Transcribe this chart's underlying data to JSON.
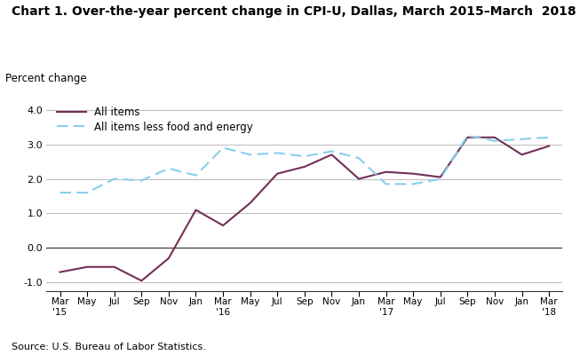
{
  "title": "Chart 1. Over-the-year percent change in CPI-U, Dallas, March 2015–March  2018",
  "ylabel": "Percent change",
  "source": "Source: U.S. Bureau of Labor Statistics.",
  "ylim": [
    -1.25,
    4.3
  ],
  "yticks": [
    -1.0,
    0.0,
    1.0,
    2.0,
    3.0,
    4.0
  ],
  "x_labels": [
    "Mar\n'15",
    "May",
    "Jul",
    "Sep",
    "Nov",
    "Jan",
    "Mar\n'16",
    "May",
    "Jul",
    "Sep",
    "Nov",
    "Jan",
    "Mar\n'17",
    "May",
    "Jul",
    "Sep",
    "Nov",
    "Jan",
    "Mar\n'18"
  ],
  "all_items": [
    -0.7,
    -0.55,
    -0.55,
    -0.95,
    -0.3,
    1.1,
    0.65,
    1.3,
    2.15,
    2.35,
    2.7,
    2.0,
    2.2,
    2.15,
    2.05,
    3.2,
    3.2,
    2.7,
    2.95
  ],
  "core_items": [
    1.6,
    1.6,
    2.0,
    1.95,
    2.3,
    2.1,
    2.9,
    2.7,
    2.75,
    2.65,
    2.8,
    2.6,
    1.85,
    1.85,
    2.0,
    3.25,
    3.1,
    3.15,
    3.2
  ],
  "all_items_color": "#722F57",
  "core_items_color": "#87CEEB",
  "background_color": "#ffffff",
  "grid_color": "#c0c0c0"
}
